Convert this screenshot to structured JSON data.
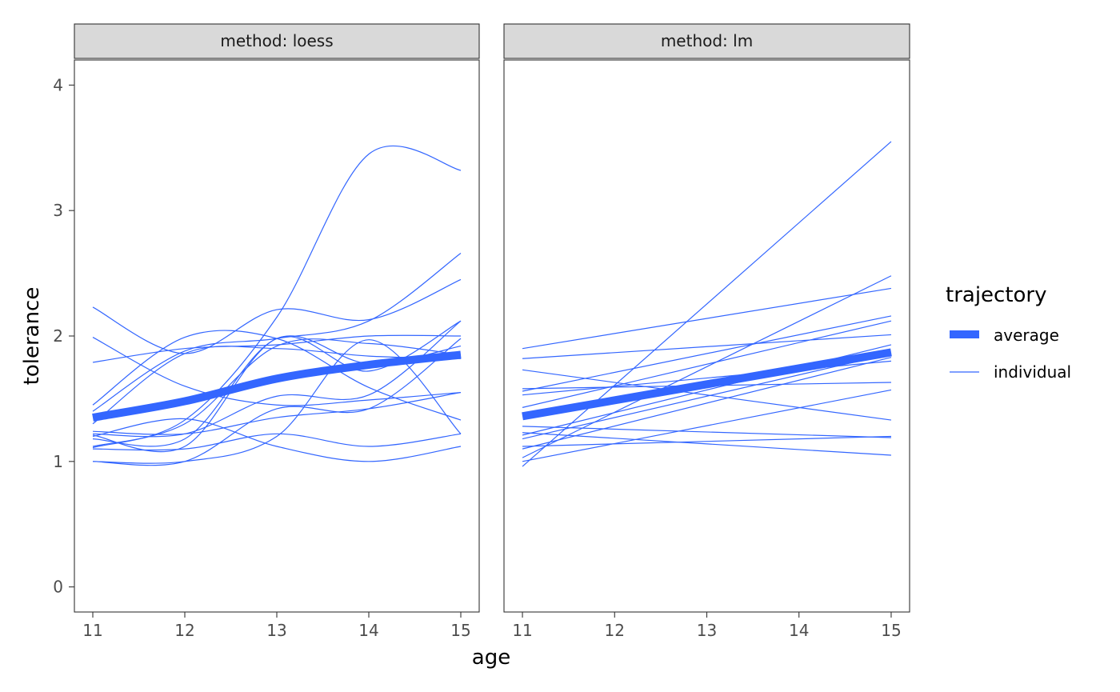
{
  "chart_data": [
    {
      "type": "line",
      "facet_label": "method: loess",
      "xlabel": "age",
      "ylabel": "tolerance",
      "xlim": [
        10.8,
        15.2
      ],
      "ylim": [
        -0.2,
        4.2
      ],
      "x_ticks": [
        11,
        12,
        13,
        14,
        15
      ],
      "y_ticks": [
        0,
        1,
        2,
        3,
        4
      ],
      "x_tick_labels": [
        "11",
        "12",
        "13",
        "14",
        "15"
      ],
      "y_tick_labels": [
        "0",
        "1",
        "2",
        "3",
        "4"
      ],
      "grid": false,
      "x": [
        11,
        12,
        13,
        14,
        15
      ],
      "series": [
        {
          "name": "average",
          "values": [
            1.35,
            1.48,
            1.66,
            1.77,
            1.85
          ]
        },
        {
          "name": "individual",
          "values": [
            2.23,
            1.86,
            2.21,
            2.13,
            2.45
          ]
        },
        {
          "name": "individual",
          "values": [
            1.99,
            1.6,
            1.45,
            1.49,
            1.55
          ]
        },
        {
          "name": "individual",
          "values": [
            1.79,
            1.9,
            1.93,
            2.0,
            2.0
          ]
        },
        {
          "name": "individual",
          "values": [
            1.45,
            1.99,
            1.98,
            1.59,
            1.33
          ]
        },
        {
          "name": "individual",
          "values": [
            1.11,
            1.33,
            2.15,
            3.45,
            3.32
          ]
        },
        {
          "name": "individual",
          "values": [
            1.0,
            1.0,
            1.2,
            1.97,
            1.22
          ]
        },
        {
          "name": "individual",
          "values": [
            1.21,
            1.12,
            1.98,
            1.72,
            2.12
          ]
        },
        {
          "name": "individual",
          "values": [
            1.4,
            1.88,
            1.98,
            2.12,
            2.66
          ]
        },
        {
          "name": "individual",
          "values": [
            1.22,
            1.22,
            1.52,
            1.53,
            2.12
          ]
        },
        {
          "name": "individual",
          "values": [
            1.1,
            1.1,
            1.22,
            1.12,
            1.22
          ]
        },
        {
          "name": "individual",
          "values": [
            1.2,
            1.34,
            1.12,
            1.0,
            1.12
          ]
        },
        {
          "name": "individual",
          "values": [
            1.12,
            1.3,
            1.92,
            1.94,
            1.85
          ]
        },
        {
          "name": "individual",
          "values": [
            1.24,
            1.22,
            1.35,
            1.42,
            1.55
          ]
        },
        {
          "name": "individual",
          "values": [
            1.18,
            1.18,
            1.98,
            1.78,
            1.92
          ]
        },
        {
          "name": "individual",
          "values": [
            1.0,
            1.0,
            1.42,
            1.42,
            1.98
          ]
        },
        {
          "name": "individual",
          "values": [
            1.3,
            1.86,
            1.9,
            1.84,
            1.82
          ]
        }
      ]
    },
    {
      "type": "line",
      "facet_label": "method: lm",
      "xlabel": "age",
      "ylabel": "tolerance",
      "xlim": [
        10.8,
        15.2
      ],
      "ylim": [
        -0.2,
        4.2
      ],
      "x_ticks": [
        11,
        12,
        13,
        14,
        15
      ],
      "x_tick_labels": [
        "11",
        "12",
        "13",
        "14",
        "15"
      ],
      "grid": false,
      "x": [
        11,
        15
      ],
      "series": [
        {
          "name": "average",
          "values": [
            1.36,
            1.87
          ]
        },
        {
          "name": "individual",
          "values": [
            0.96,
            3.55
          ]
        },
        {
          "name": "individual",
          "values": [
            1.03,
            2.48
          ]
        },
        {
          "name": "individual",
          "values": [
            1.9,
            2.38
          ]
        },
        {
          "name": "individual",
          "values": [
            1.56,
            2.16
          ]
        },
        {
          "name": "individual",
          "values": [
            1.43,
            2.12
          ]
        },
        {
          "name": "individual",
          "values": [
            1.82,
            2.01
          ]
        },
        {
          "name": "individual",
          "values": [
            1.21,
            1.93
          ]
        },
        {
          "name": "individual",
          "values": [
            1.18,
            1.86
          ]
        },
        {
          "name": "individual",
          "values": [
            1.53,
            1.8
          ]
        },
        {
          "name": "individual",
          "values": [
            1.1,
            1.83
          ]
        },
        {
          "name": "individual",
          "values": [
            1.58,
            1.63
          ]
        },
        {
          "name": "individual",
          "values": [
            1.0,
            1.57
          ]
        },
        {
          "name": "individual",
          "values": [
            1.73,
            1.33
          ]
        },
        {
          "name": "individual",
          "values": [
            1.28,
            1.19
          ]
        },
        {
          "name": "individual",
          "values": [
            1.12,
            1.2
          ]
        },
        {
          "name": "individual",
          "values": [
            1.23,
            1.05
          ]
        }
      ]
    }
  ],
  "legend": {
    "title": "trajectory",
    "placement": "right",
    "items": [
      {
        "label": "average",
        "style": "thick"
      },
      {
        "label": "individual",
        "style": "thin"
      }
    ]
  },
  "colors": {
    "line": "#3366ff",
    "strip_fill": "#d9d9d9",
    "panel_border": "#333333",
    "tick": "#333333"
  }
}
